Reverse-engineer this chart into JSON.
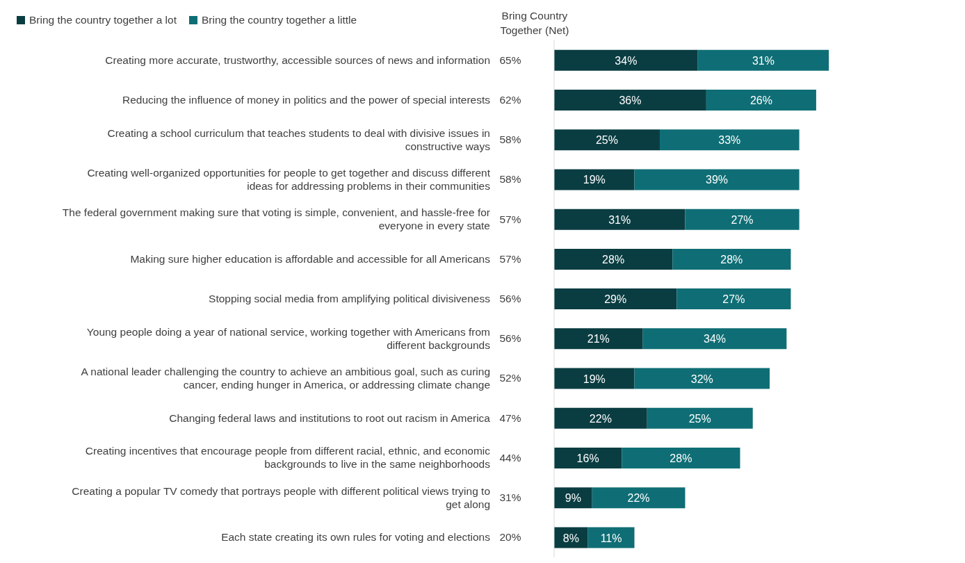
{
  "chart_data": {
    "type": "bar",
    "orientation": "horizontal",
    "stacked": true,
    "legend": "top left",
    "categories": [
      "Creating more accurate, trustworthy, accessible sources of news and information",
      "Reducing the influence of money in politics and the power of special interests",
      "Creating a school curriculum that teaches students to deal with divisive issues in constructive ways",
      "Creating well-organized opportunities for people to get together and discuss different ideas for addressing problems in their communities",
      "The federal government making sure that voting is simple, convenient, and hassle-free for everyone in every state",
      "Making sure higher education is affordable and accessible for all Americans",
      "Stopping social media from amplifying political divisiveness",
      "Young people doing a year of national service, working together with Americans from different backgrounds",
      "A national leader challenging the country to achieve an ambitious goal, such as curing cancer, ending hunger in America, or addressing climate change",
      "Changing federal laws and institutions to root out racism in America",
      "Creating incentives that encourage people from different racial, ethnic, and economic backgrounds to live in the same neighborhoods",
      "Creating a popular TV comedy that portrays people with different political views trying to get along",
      "Each state creating its own rules for voting and elections"
    ],
    "series": [
      {
        "name": "Bring the country together a lot",
        "color": "#0a3d42",
        "values": [
          34,
          36,
          25,
          19,
          31,
          28,
          29,
          21,
          19,
          22,
          16,
          9,
          8
        ],
        "value_labels": [
          "34%",
          "36%",
          "25%",
          "19%",
          "31%",
          "28%",
          "29%",
          "21%",
          "19%",
          "22%",
          "16%",
          "9%",
          "8%"
        ]
      },
      {
        "name": "Bring the country together a little",
        "color": "#0f6e75",
        "values": [
          31,
          26,
          33,
          39,
          27,
          28,
          27,
          34,
          32,
          25,
          28,
          22,
          11
        ],
        "value_labels": [
          "31%",
          "26%",
          "33%",
          "39%",
          "27%",
          "28%",
          "27%",
          "34%",
          "32%",
          "25%",
          "28%",
          "22%",
          "11%"
        ]
      }
    ],
    "totals": [
      "65%",
      "62%",
      "58%",
      "58%",
      "57%",
      "57%",
      "56%",
      "56%",
      "52%",
      "47%",
      "44%",
      "31%",
      "20%"
    ],
    "annotations": [
      "Bring Country Together (Net)"
    ]
  }
}
